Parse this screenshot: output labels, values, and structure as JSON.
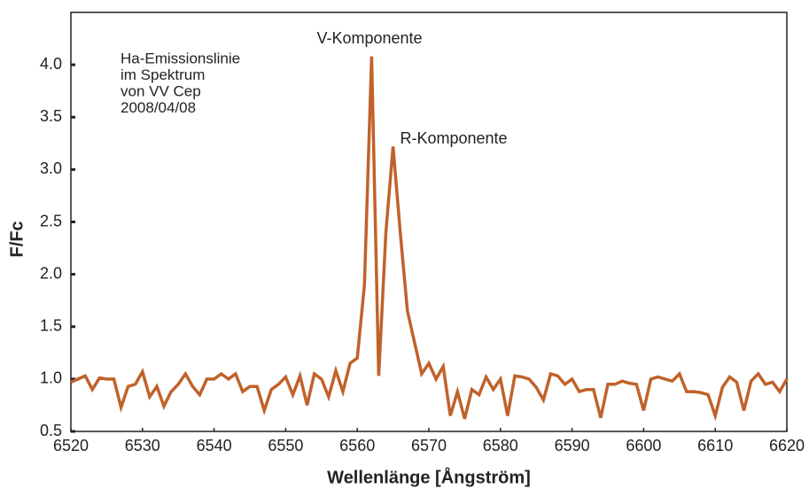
{
  "chart_data": {
    "type": "line",
    "annotations": [
      "V-Komponente",
      "R-Komponente"
    ],
    "note_lines": [
      "Ha-Emissionslinie",
      "im Spektrum",
      "von VV Cep",
      "2008/04/08"
    ],
    "xlabel": "Wellenlänge [Ångström]",
    "ylabel": "F/Fc",
    "color": "#c0622b",
    "x": [
      6520,
      6521,
      6522,
      6523,
      6524,
      6525,
      6526,
      6527,
      6528,
      6529,
      6530,
      6531,
      6532,
      6533,
      6534,
      6535,
      6536,
      6537,
      6538,
      6539,
      6540,
      6541,
      6542,
      6543,
      6544,
      6545,
      6546,
      6547,
      6548,
      6549,
      6550,
      6551,
      6552,
      6553,
      6554,
      6555,
      6556,
      6557,
      6558,
      6559,
      6560,
      6561,
      6562,
      6563,
      6564,
      6565,
      6566,
      6567,
      6568,
      6569,
      6570,
      6571,
      6572,
      6573,
      6574,
      6575,
      6576,
      6577,
      6578,
      6579,
      6580,
      6581,
      6582,
      6583,
      6584,
      6585,
      6586,
      6587,
      6588,
      6589,
      6590,
      6591,
      6592,
      6593,
      6594,
      6595,
      6596,
      6597,
      6598,
      6599,
      6600,
      6601,
      6602,
      6603,
      6604,
      6605,
      6606,
      6607,
      6608,
      6609,
      6610,
      6611,
      6612,
      6613,
      6614,
      6615,
      6616,
      6617,
      6618,
      6619,
      6620
    ],
    "values": [
      0.97,
      1.0,
      1.03,
      0.9,
      1.01,
      1.0,
      1.0,
      0.73,
      0.93,
      0.95,
      1.07,
      0.83,
      0.93,
      0.74,
      0.88,
      0.95,
      1.05,
      0.93,
      0.85,
      1.0,
      1.0,
      1.05,
      1.0,
      1.05,
      0.88,
      0.93,
      0.93,
      0.7,
      0.9,
      0.95,
      1.02,
      0.85,
      1.03,
      0.75,
      1.05,
      1.0,
      0.83,
      1.08,
      0.88,
      1.15,
      1.2,
      1.9,
      4.08,
      1.03,
      2.4,
      3.22,
      2.4,
      1.65,
      1.35,
      1.05,
      1.15,
      1.0,
      1.12,
      0.65,
      0.88,
      0.62,
      0.9,
      0.85,
      1.02,
      0.9,
      1.0,
      0.65,
      1.03,
      1.02,
      1.0,
      0.92,
      0.8,
      1.05,
      1.03,
      0.95,
      1.0,
      0.88,
      0.9,
      0.9,
      0.63,
      0.95,
      0.95,
      0.98,
      0.96,
      0.95,
      0.7,
      1.0,
      1.02,
      1.0,
      0.98,
      1.05,
      0.88,
      0.88,
      0.87,
      0.85,
      0.65,
      0.92,
      1.02,
      0.97,
      0.7,
      0.98,
      1.05,
      0.95,
      0.97,
      0.88,
      1.0
    ],
    "xlim": [
      6520,
      6620
    ],
    "xticks": [
      6520,
      6530,
      6540,
      6550,
      6560,
      6570,
      6580,
      6590,
      6600,
      6610,
      6620
    ],
    "ylim": [
      0.5,
      4.5
    ],
    "yticks": [
      0.5,
      {
        "value": 1,
        "label": "1.0"
      },
      1.5,
      {
        "value": 2,
        "label": "2.0"
      },
      2.5,
      {
        "value": 3,
        "label": "3.0"
      },
      3.5,
      {
        "value": 4,
        "label": "4.0"
      }
    ],
    "grid": false
  }
}
